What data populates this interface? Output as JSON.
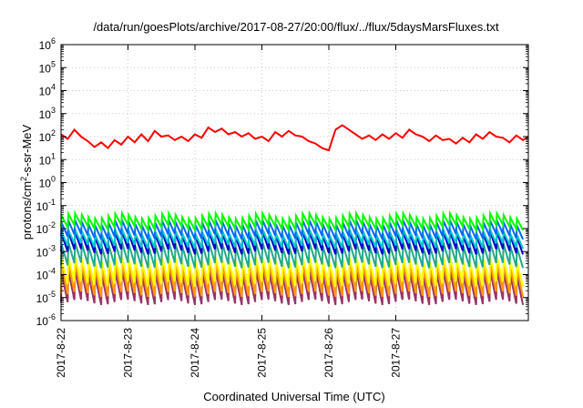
{
  "chart_data": {
    "type": "line",
    "title": "/data/run/goesPlots/archive/2017-08-27/20:00/flux/../flux/5daysMarsFluxes.txt",
    "xlabel": "Coordinated Universal Time (UTC)",
    "ylabel_main": "protons/cm",
    "ylabel_sup": "2",
    "ylabel_tail": "-s-sr-MeV",
    "yscale": "log",
    "ylim_exp": [
      -6,
      6
    ],
    "y_ticks": [
      {
        "base": "10",
        "exp": "6"
      },
      {
        "base": "10",
        "exp": "5"
      },
      {
        "base": "10",
        "exp": "4"
      },
      {
        "base": "10",
        "exp": "3"
      },
      {
        "base": "10",
        "exp": "2"
      },
      {
        "base": "10",
        "exp": "1"
      },
      {
        "base": "10",
        "exp": "0"
      },
      {
        "base": "10",
        "exp": "-1"
      },
      {
        "base": "10",
        "exp": "-2"
      },
      {
        "base": "10",
        "exp": "-3"
      },
      {
        "base": "10",
        "exp": "-4"
      },
      {
        "base": "10",
        "exp": "-5"
      },
      {
        "base": "10",
        "exp": "-6"
      }
    ],
    "xlim_days": [
      0,
      6.98
    ],
    "x_ticks": [
      {
        "label": "2017-8-22",
        "day": 0
      },
      {
        "label": "2017-8-23",
        "day": 1
      },
      {
        "label": "2017-8-24",
        "day": 2
      },
      {
        "label": "2017-8-25",
        "day": 3
      },
      {
        "label": "2017-8-26",
        "day": 4
      },
      {
        "label": "2017-8-27",
        "day": 5
      }
    ],
    "grid": true,
    "series": [
      {
        "color": "#ff0000",
        "day": [
          0,
          0.1,
          0.2,
          0.3,
          0.4,
          0.5,
          0.6,
          0.7,
          0.8,
          0.9,
          1.0,
          1.1,
          1.2,
          1.3,
          1.4,
          1.5,
          1.6,
          1.7,
          1.8,
          1.9,
          2.0,
          2.1,
          2.2,
          2.3,
          2.4,
          2.5,
          2.6,
          2.7,
          2.8,
          2.9,
          3.0,
          3.1,
          3.2,
          3.3,
          3.4,
          3.5,
          3.6,
          3.7,
          3.8,
          3.9,
          4.0,
          4.1,
          4.2,
          4.3,
          4.4,
          4.5,
          4.6,
          4.7,
          4.8,
          4.9,
          5.0,
          5.1,
          5.2,
          5.3,
          5.4,
          5.5,
          5.6,
          5.7,
          5.8,
          5.9,
          6.0,
          6.1,
          6.2,
          6.3,
          6.4,
          6.5,
          6.6,
          6.7,
          6.8,
          6.9,
          6.98
        ],
        "log10": [
          2.1,
          1.9,
          2.3,
          2.0,
          1.8,
          1.55,
          1.75,
          1.5,
          1.85,
          1.65,
          2.0,
          1.75,
          2.1,
          1.8,
          2.25,
          2.0,
          2.05,
          1.85,
          2.0,
          1.8,
          2.1,
          1.95,
          2.4,
          2.2,
          2.35,
          2.1,
          2.2,
          2.0,
          2.15,
          1.9,
          2.0,
          1.8,
          2.2,
          2.0,
          2.25,
          2.05,
          2.0,
          1.8,
          1.7,
          1.5,
          1.4,
          2.3,
          2.5,
          2.3,
          2.1,
          1.9,
          2.05,
          1.85,
          2.1,
          1.9,
          2.15,
          1.95,
          2.3,
          2.1,
          2.0,
          1.8,
          2.05,
          1.85,
          1.9,
          1.7,
          1.95,
          1.75,
          2.1,
          1.9,
          2.2,
          2.0,
          1.95,
          1.75,
          2.05,
          1.85,
          2.0
        ]
      }
    ],
    "sawtooth_series": [
      {
        "color": "#00ff00",
        "top": -1.45,
        "bottom": -1.95
      },
      {
        "color": "#0066ff",
        "top": -1.75,
        "bottom": -2.35
      },
      {
        "color": "#00c8c8",
        "top": -2.15,
        "bottom": -2.75
      },
      {
        "color": "#0000cc",
        "top": -2.25,
        "bottom": -3.0
      },
      {
        "color": "#22aa88",
        "top": -2.7,
        "bottom": -3.6
      },
      {
        "color": "#ffff00",
        "top": -3.35,
        "bottom": -4.4
      },
      {
        "color": "#ff9900",
        "top": -3.6,
        "bottom": -4.85
      },
      {
        "color": "#993366",
        "top": -3.95,
        "bottom": -5.2
      }
    ],
    "sawtooth_period_days": 0.1
  }
}
